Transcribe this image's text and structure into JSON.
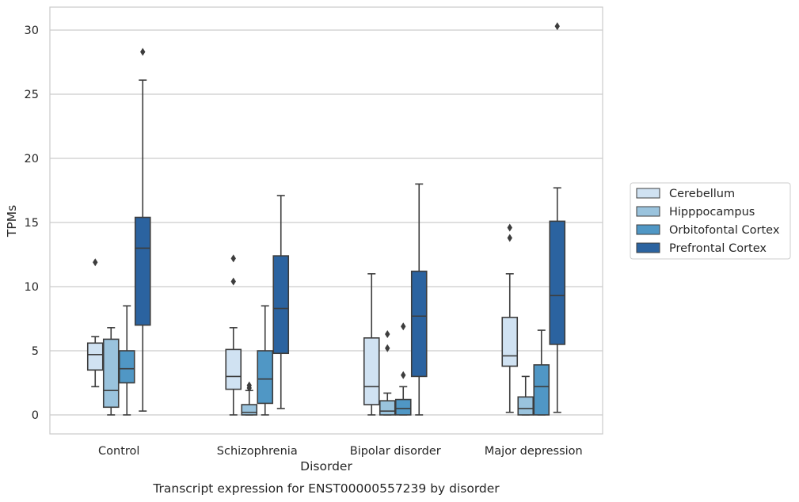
{
  "chart_data": {
    "type": "box",
    "xlabel": "Disorder",
    "ylabel": "TPMs",
    "caption": "Transcript expression for ENST00000557239 by disorder",
    "ylim": [
      -1.4,
      31.8
    ],
    "yticks": [
      0,
      5,
      10,
      15,
      20,
      25,
      30
    ],
    "grid": "horizontal",
    "legend_position": "right",
    "categories": [
      "Control",
      "Schizophrenia",
      "Bipolar disorder",
      "Major depression"
    ],
    "series": [
      {
        "name": "Cerebellum",
        "color": "#d0e2f2",
        "boxes": [
          {
            "whisker_low": 2.2,
            "q1": 3.5,
            "median": 4.7,
            "q3": 5.6,
            "whisker_high": 6.1,
            "outliers": [
              11.9
            ]
          },
          {
            "whisker_low": 0.0,
            "q1": 2.0,
            "median": 3.0,
            "q3": 5.1,
            "whisker_high": 6.8,
            "outliers": [
              10.4,
              12.2
            ]
          },
          {
            "whisker_low": 0.0,
            "q1": 0.8,
            "median": 2.2,
            "q3": 6.0,
            "whisker_high": 11.0,
            "outliers": []
          },
          {
            "whisker_low": 0.2,
            "q1": 3.8,
            "median": 4.6,
            "q3": 7.6,
            "whisker_high": 11.0,
            "outliers": [
              13.8,
              14.6
            ]
          }
        ]
      },
      {
        "name": "Hipppocampus",
        "color": "#9ac3dd",
        "boxes": [
          {
            "whisker_low": 0.0,
            "q1": 0.6,
            "median": 1.9,
            "q3": 5.9,
            "whisker_high": 6.8,
            "outliers": []
          },
          {
            "whisker_low": 0.0,
            "q1": 0.0,
            "median": 0.2,
            "q3": 0.8,
            "whisker_high": 1.9,
            "outliers": [
              2.1,
              2.3
            ]
          },
          {
            "whisker_low": 0.0,
            "q1": 0.0,
            "median": 0.3,
            "q3": 1.1,
            "whisker_high": 1.7,
            "outliers": [
              5.2,
              6.3
            ]
          },
          {
            "whisker_low": 0.0,
            "q1": 0.0,
            "median": 0.5,
            "q3": 1.4,
            "whisker_high": 3.0,
            "outliers": []
          }
        ]
      },
      {
        "name": "Orbitofontal Cortex",
        "color": "#5097c5",
        "boxes": [
          {
            "whisker_low": 0.0,
            "q1": 2.5,
            "median": 3.6,
            "q3": 5.0,
            "whisker_high": 8.5,
            "outliers": []
          },
          {
            "whisker_low": 0.0,
            "q1": 0.9,
            "median": 2.8,
            "q3": 5.0,
            "whisker_high": 8.5,
            "outliers": []
          },
          {
            "whisker_low": 0.0,
            "q1": 0.0,
            "median": 0.5,
            "q3": 1.2,
            "whisker_high": 2.2,
            "outliers": [
              3.1,
              6.9
            ]
          },
          {
            "whisker_low": 0.0,
            "q1": 0.0,
            "median": 2.2,
            "q3": 3.9,
            "whisker_high": 6.6,
            "outliers": []
          }
        ]
      },
      {
        "name": "Prefrontal Cortex",
        "color": "#2b63a0",
        "boxes": [
          {
            "whisker_low": 0.3,
            "q1": 7.0,
            "median": 13.0,
            "q3": 15.4,
            "whisker_high": 26.1,
            "outliers": [
              28.3
            ]
          },
          {
            "whisker_low": 0.5,
            "q1": 4.8,
            "median": 8.3,
            "q3": 12.4,
            "whisker_high": 17.1,
            "outliers": []
          },
          {
            "whisker_low": 0.0,
            "q1": 3.0,
            "median": 7.7,
            "q3": 11.2,
            "whisker_high": 18.0,
            "outliers": []
          },
          {
            "whisker_low": 0.2,
            "q1": 5.5,
            "median": 9.3,
            "q3": 15.1,
            "whisker_high": 17.7,
            "outliers": [
              30.3
            ]
          }
        ]
      }
    ]
  }
}
